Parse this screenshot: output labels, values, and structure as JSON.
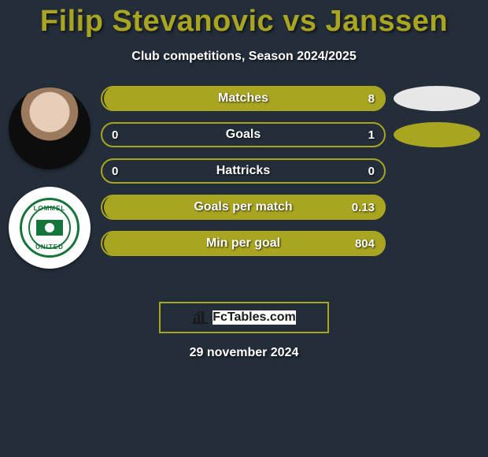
{
  "title": "Filip Stevanovic vs Janssen",
  "subtitle": "Club competitions, Season 2024/2025",
  "footer_brand": "FcTables.com",
  "footer_date": "29 november 2024",
  "colors": {
    "background": "#242e3a",
    "accent": "#a9a520",
    "accent_border": "#a9a520",
    "ellipse_light": "#e7e7e8",
    "ellipse_gold_fill": "#a9a520",
    "text_white": "#ffffff",
    "title_color": "#a9a520"
  },
  "avatars": {
    "player1_name": "player-avatar",
    "player2_name": "club-avatar",
    "club_top": "LOMMEL",
    "club_bottom": "UNITED"
  },
  "stats": [
    {
      "label": "Matches",
      "left_value": "",
      "right_value": "8",
      "left_fill_pct": 0,
      "right_fill_pct": 100,
      "border_color": "#a9a520",
      "left_fill_color": "#a9a520",
      "right_fill_color": "#a9a520",
      "show_ellipse": true,
      "ellipse_color": "#e7e7e8"
    },
    {
      "label": "Goals",
      "left_value": "0",
      "right_value": "1",
      "left_fill_pct": 0,
      "right_fill_pct": 0,
      "border_color": "#a9a520",
      "left_fill_color": "#a9a520",
      "right_fill_color": "#a9a520",
      "show_ellipse": true,
      "ellipse_color": "#a9a520"
    },
    {
      "label": "Hattricks",
      "left_value": "0",
      "right_value": "0",
      "left_fill_pct": 0,
      "right_fill_pct": 0,
      "border_color": "#a9a520",
      "left_fill_color": "#a9a520",
      "right_fill_color": "#a9a520",
      "show_ellipse": false,
      "ellipse_color": ""
    },
    {
      "label": "Goals per match",
      "left_value": "",
      "right_value": "0.13",
      "left_fill_pct": 0,
      "right_fill_pct": 100,
      "border_color": "#a9a520",
      "left_fill_color": "#a9a520",
      "right_fill_color": "#a9a520",
      "show_ellipse": false,
      "ellipse_color": ""
    },
    {
      "label": "Min per goal",
      "left_value": "",
      "right_value": "804",
      "left_fill_pct": 0,
      "right_fill_pct": 100,
      "border_color": "#a9a520",
      "left_fill_color": "#a9a520",
      "right_fill_color": "#a9a520",
      "show_ellipse": false,
      "ellipse_color": ""
    }
  ]
}
